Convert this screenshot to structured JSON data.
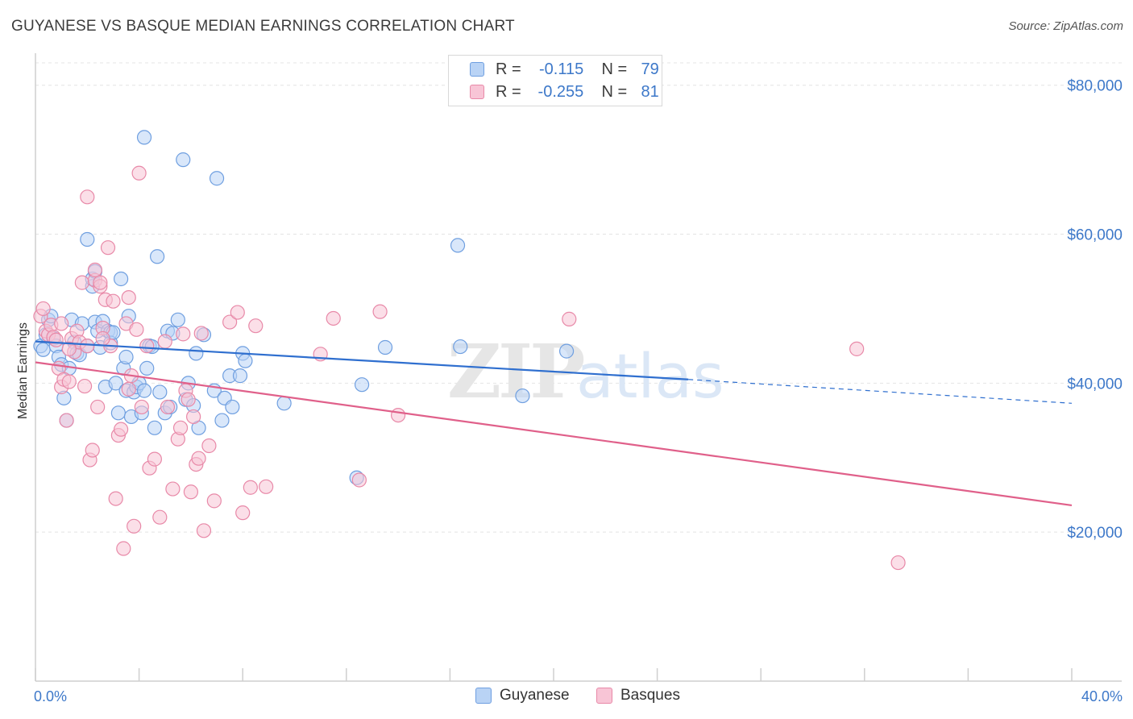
{
  "title": "GUYANESE VS BASQUE MEDIAN EARNINGS CORRELATION CHART",
  "source": "Source: ZipAtlas.com",
  "watermark": "ZIPatlas",
  "legend_top": [
    {
      "r_label": "R =",
      "r_value": "-0.115",
      "n_label": "N =",
      "n_value": "79",
      "fill": "#b9d3f5",
      "stroke": "#6f9fe0"
    },
    {
      "r_label": "R =",
      "r_value": "-0.255",
      "n_label": "N =",
      "n_value": "81",
      "fill": "#f8c5d6",
      "stroke": "#e889a8"
    }
  ],
  "chart_data": {
    "type": "scatter",
    "title": "GUYANESE VS BASQUE MEDIAN EARNINGS CORRELATION CHART",
    "xlabel": "",
    "ylabel": "Median Earnings",
    "xlim": [
      0,
      40
    ],
    "ylim": [
      0,
      83000
    ],
    "x_tick_labels": [
      "0.0%",
      "40.0%"
    ],
    "y_ticks": [
      20000,
      40000,
      60000,
      80000
    ],
    "y_tick_labels": [
      "$20,000",
      "$40,000",
      "$60,000",
      "$80,000"
    ],
    "grid": true,
    "legend_position": "bottom-center",
    "series": [
      {
        "name": "Guyanese",
        "color": "#6f9fe0",
        "fill": "#b9d3f5",
        "line_color": "#2f6fcf",
        "trend": {
          "x_start": 0,
          "y_start": 45600,
          "x_end": 25.2,
          "y_end": 40500,
          "dash_x_end": 40,
          "dash_y_end": 37300
        },
        "points": [
          [
            0.2,
            45000
          ],
          [
            0.3,
            44500
          ],
          [
            0.4,
            46500
          ],
          [
            0.5,
            48500
          ],
          [
            0.6,
            49000
          ],
          [
            0.7,
            46000
          ],
          [
            0.8,
            45000
          ],
          [
            0.9,
            43500
          ],
          [
            1.0,
            42500
          ],
          [
            1.1,
            38000
          ],
          [
            1.2,
            35000
          ],
          [
            1.3,
            42000
          ],
          [
            1.4,
            48500
          ],
          [
            1.5,
            45500
          ],
          [
            1.6,
            44000
          ],
          [
            1.7,
            43800
          ],
          [
            1.8,
            48000
          ],
          [
            2.0,
            45000
          ],
          [
            2.0,
            59300
          ],
          [
            2.2,
            53000
          ],
          [
            2.3,
            48200
          ],
          [
            2.4,
            47000
          ],
          [
            2.5,
            44800
          ],
          [
            2.6,
            48300
          ],
          [
            2.8,
            47000
          ],
          [
            2.9,
            46800
          ],
          [
            2.2,
            54000
          ],
          [
            2.3,
            55000
          ],
          [
            2.7,
            39500
          ],
          [
            2.9,
            45400
          ],
          [
            3.0,
            46800
          ],
          [
            3.1,
            40000
          ],
          [
            3.2,
            36000
          ],
          [
            3.3,
            54000
          ],
          [
            3.4,
            42000
          ],
          [
            3.5,
            43500
          ],
          [
            3.5,
            39000
          ],
          [
            3.6,
            49000
          ],
          [
            3.7,
            35500
          ],
          [
            3.8,
            38800
          ],
          [
            3.9,
            39500
          ],
          [
            4.0,
            40000
          ],
          [
            4.1,
            36000
          ],
          [
            4.2,
            39000
          ],
          [
            4.3,
            42000
          ],
          [
            4.4,
            45000
          ],
          [
            4.5,
            44900
          ],
          [
            4.6,
            34000
          ],
          [
            4.7,
            57000
          ],
          [
            4.8,
            38800
          ],
          [
            5.0,
            36000
          ],
          [
            5.1,
            47000
          ],
          [
            5.2,
            36800
          ],
          [
            5.3,
            46700
          ],
          [
            5.5,
            48500
          ],
          [
            5.7,
            70000
          ],
          [
            5.8,
            37800
          ],
          [
            5.9,
            40000
          ],
          [
            6.1,
            37000
          ],
          [
            6.2,
            44000
          ],
          [
            6.3,
            34000
          ],
          [
            6.5,
            46500
          ],
          [
            6.9,
            39000
          ],
          [
            7.0,
            67500
          ],
          [
            7.2,
            35000
          ],
          [
            7.3,
            38000
          ],
          [
            7.5,
            41000
          ],
          [
            7.6,
            36800
          ],
          [
            7.9,
            41000
          ],
          [
            8.0,
            44000
          ],
          [
            8.1,
            43000
          ],
          [
            9.6,
            37300
          ],
          [
            12.4,
            27300
          ],
          [
            12.6,
            39800
          ],
          [
            13.5,
            44800
          ],
          [
            16.3,
            58500
          ],
          [
            16.4,
            44900
          ],
          [
            18.8,
            38300
          ],
          [
            20.5,
            44300
          ],
          [
            4.2,
            73000
          ]
        ]
      },
      {
        "name": "Basques",
        "color": "#e889a8",
        "fill": "#f8c5d6",
        "line_color": "#e0608a",
        "trend": {
          "x_start": 0,
          "y_start": 42800,
          "x_end": 40,
          "y_end": 23600
        },
        "points": [
          [
            0.2,
            49000
          ],
          [
            0.3,
            50000
          ],
          [
            0.4,
            47000
          ],
          [
            0.5,
            46500
          ],
          [
            0.6,
            47800
          ],
          [
            0.7,
            46200
          ],
          [
            0.8,
            45800
          ],
          [
            0.9,
            42000
          ],
          [
            1.0,
            39500
          ],
          [
            1.1,
            40500
          ],
          [
            1.2,
            35000
          ],
          [
            1.3,
            40200
          ],
          [
            1.4,
            46000
          ],
          [
            1.5,
            44200
          ],
          [
            1.6,
            47000
          ],
          [
            1.7,
            45500
          ],
          [
            1.8,
            53500
          ],
          [
            1.9,
            39600
          ],
          [
            2.0,
            45000
          ],
          [
            2.1,
            29700
          ],
          [
            2.2,
            31000
          ],
          [
            2.3,
            53800
          ],
          [
            2.4,
            36800
          ],
          [
            2.5,
            53000
          ],
          [
            2.6,
            47400
          ],
          [
            2.7,
            51200
          ],
          [
            2.8,
            58200
          ],
          [
            2.9,
            45000
          ],
          [
            2.0,
            65000
          ],
          [
            2.5,
            53500
          ],
          [
            2.3,
            55200
          ],
          [
            3.0,
            51000
          ],
          [
            3.1,
            24500
          ],
          [
            3.2,
            33000
          ],
          [
            3.3,
            33800
          ],
          [
            3.4,
            17800
          ],
          [
            3.5,
            48000
          ],
          [
            3.6,
            51500
          ],
          [
            3.7,
            41000
          ],
          [
            3.8,
            20800
          ],
          [
            3.9,
            47200
          ],
          [
            4.0,
            68200
          ],
          [
            4.1,
            36800
          ],
          [
            4.3,
            45000
          ],
          [
            4.4,
            28600
          ],
          [
            4.6,
            29800
          ],
          [
            4.8,
            22000
          ],
          [
            5.0,
            45600
          ],
          [
            5.1,
            36800
          ],
          [
            5.3,
            25800
          ],
          [
            5.5,
            32500
          ],
          [
            5.6,
            34000
          ],
          [
            5.7,
            46600
          ],
          [
            5.8,
            39000
          ],
          [
            5.9,
            37800
          ],
          [
            6.0,
            25400
          ],
          [
            6.1,
            35500
          ],
          [
            6.2,
            29100
          ],
          [
            6.3,
            29900
          ],
          [
            6.4,
            46700
          ],
          [
            6.5,
            20200
          ],
          [
            6.7,
            31600
          ],
          [
            6.9,
            24200
          ],
          [
            7.5,
            48200
          ],
          [
            7.8,
            49500
          ],
          [
            8.0,
            22600
          ],
          [
            8.3,
            26000
          ],
          [
            8.5,
            47700
          ],
          [
            8.9,
            26100
          ],
          [
            11.0,
            43900
          ],
          [
            11.5,
            48700
          ],
          [
            12.5,
            27000
          ],
          [
            13.3,
            49600
          ],
          [
            14.0,
            35700
          ],
          [
            20.6,
            48600
          ],
          [
            31.7,
            44600
          ],
          [
            33.3,
            15900
          ],
          [
            1.3,
            44600
          ],
          [
            2.6,
            46000
          ],
          [
            3.6,
            39200
          ],
          [
            1.0,
            48000
          ]
        ]
      }
    ]
  }
}
